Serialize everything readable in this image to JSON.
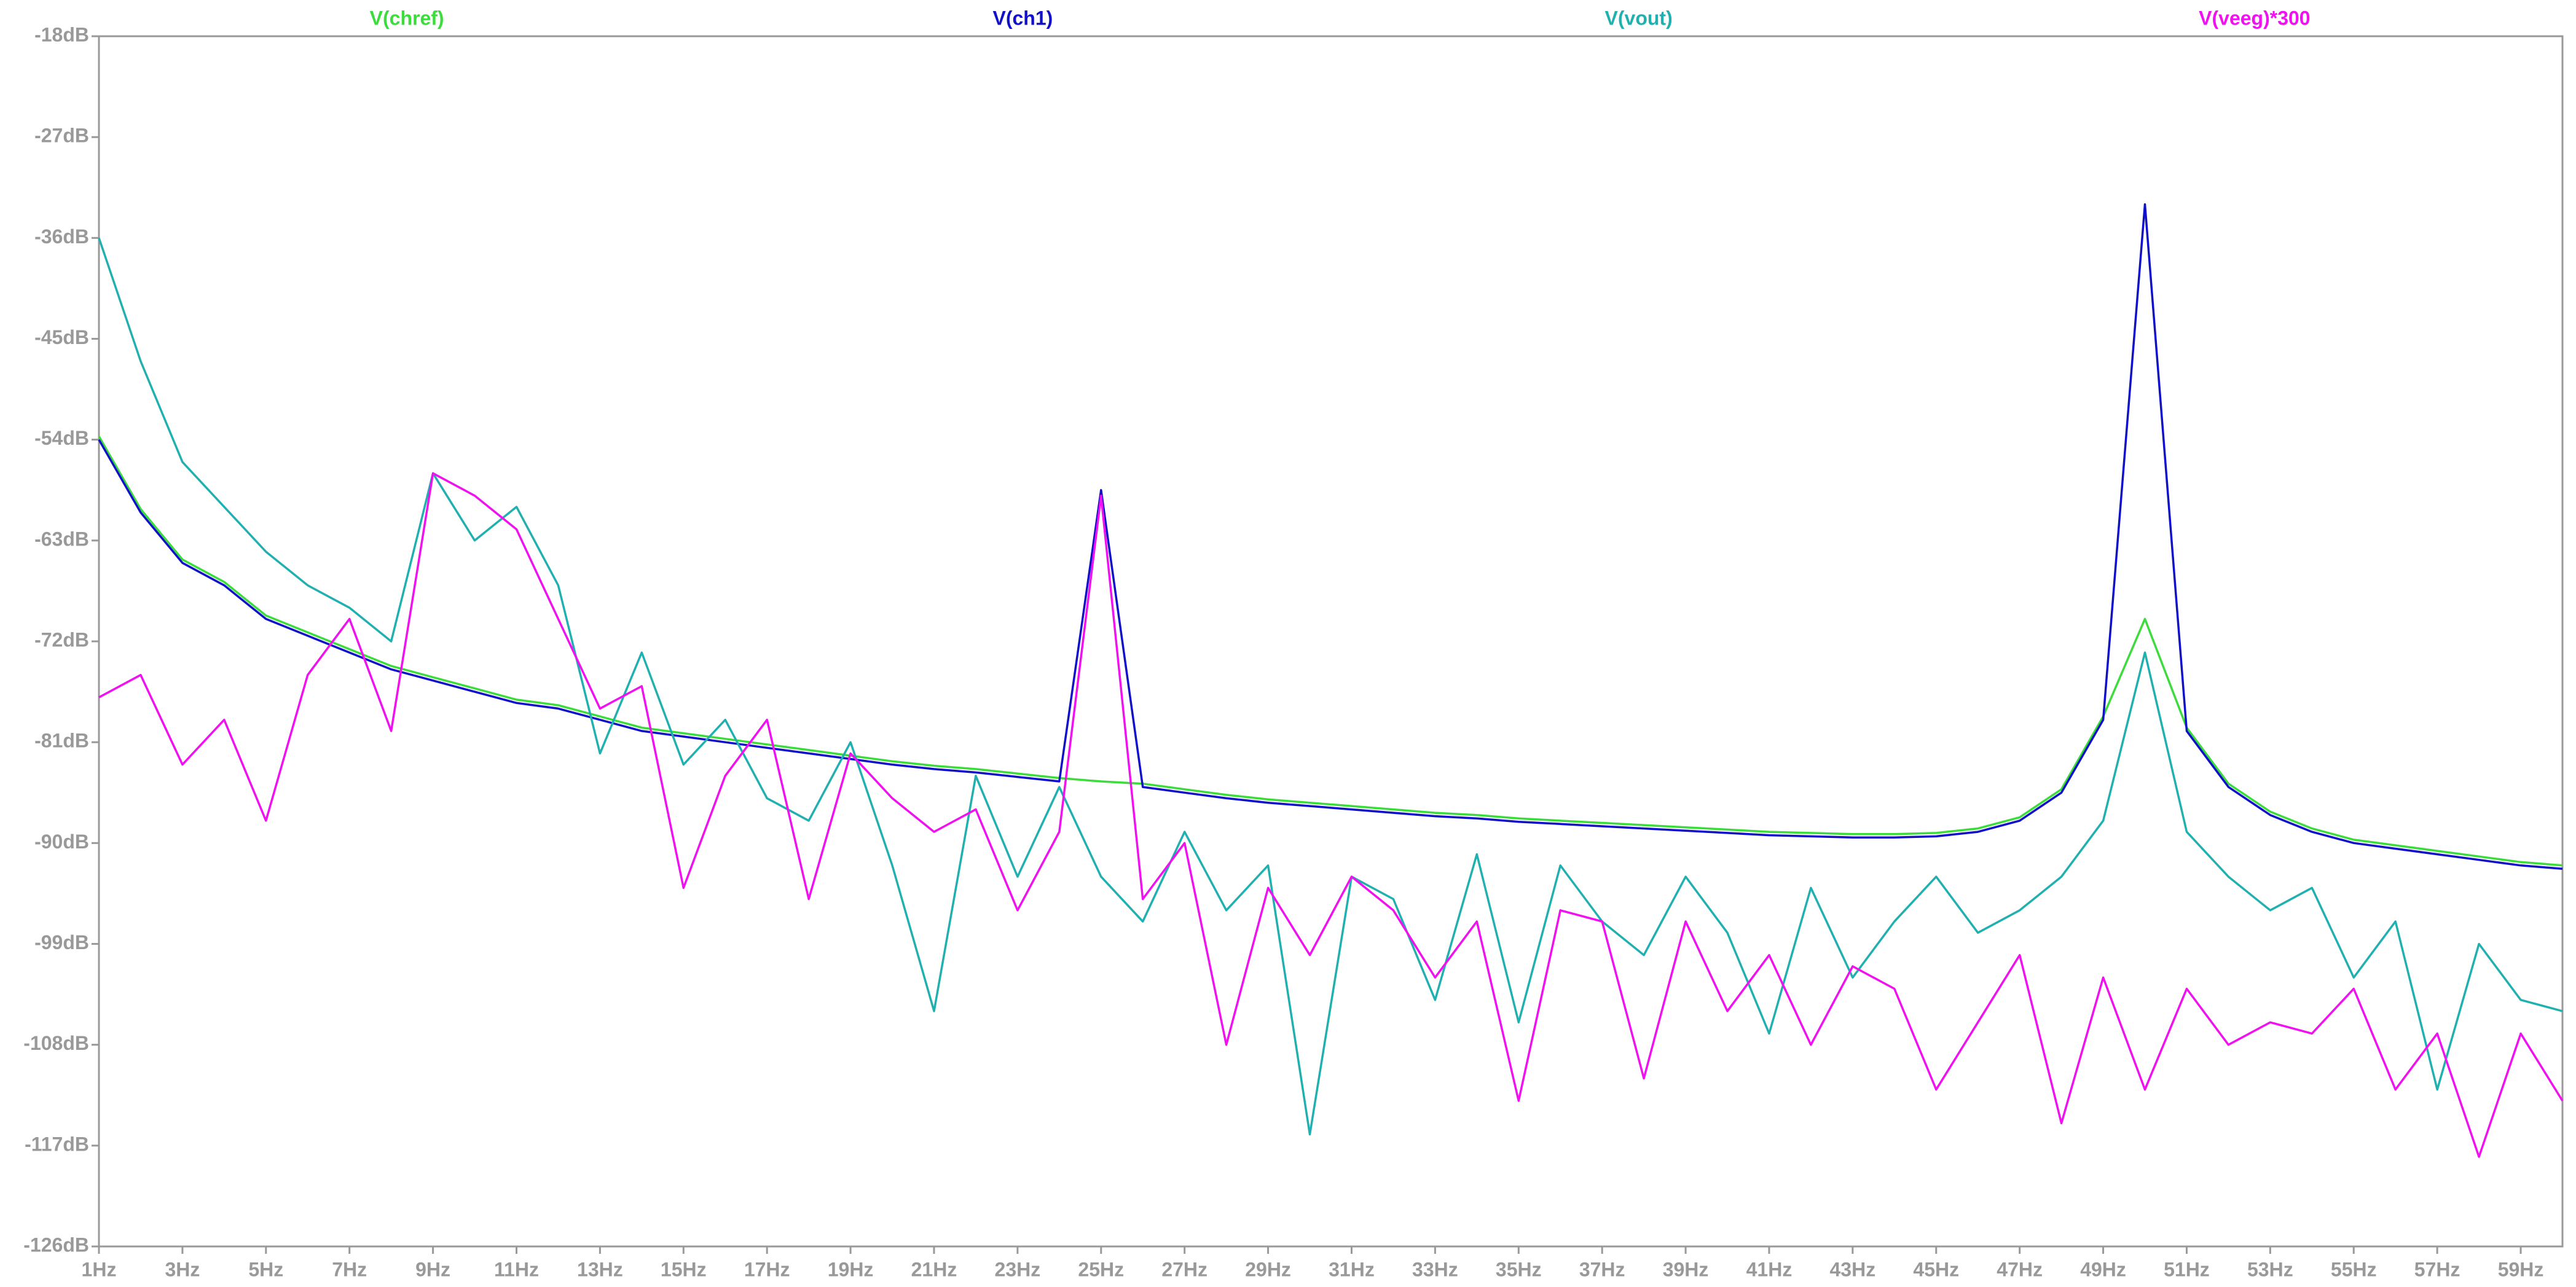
{
  "chart_data": {
    "type": "line",
    "x": [
      1,
      2,
      3,
      4,
      5,
      6,
      7,
      8,
      9,
      10,
      11,
      12,
      13,
      14,
      15,
      16,
      17,
      18,
      19,
      20,
      21,
      22,
      23,
      24,
      25,
      26,
      27,
      28,
      29,
      30,
      31,
      32,
      33,
      34,
      35,
      36,
      37,
      38,
      39,
      40,
      41,
      42,
      43,
      44,
      45,
      46,
      47,
      48,
      49,
      50,
      51,
      52,
      53,
      54,
      55,
      56,
      57,
      58,
      59,
      60
    ],
    "series": [
      {
        "name": "V(chref)",
        "color": "#3cdc3c",
        "values": [
          -53.7,
          -60.2,
          -64.7,
          -66.7,
          -69.7,
          -71.2,
          -72.7,
          -74.2,
          -75.2,
          -76.2,
          -77.2,
          -77.7,
          -78.7,
          -79.7,
          -80.2,
          -80.7,
          -81.2,
          -81.7,
          -82.2,
          -82.7,
          -83.1,
          -83.4,
          -83.8,
          -84.2,
          -84.5,
          -84.7,
          -85.2,
          -85.7,
          -86.1,
          -86.4,
          -86.7,
          -87,
          -87.3,
          -87.5,
          -87.8,
          -88,
          -88.2,
          -88.4,
          -88.6,
          -88.8,
          -89,
          -89.1,
          -89.2,
          -89.2,
          -89.1,
          -88.7,
          -87.7,
          -85.2,
          -78.7,
          -70,
          -79.7,
          -84.7,
          -87.2,
          -88.7,
          -89.7,
          -90.2,
          -90.7,
          -91.2,
          -91.7,
          -92
        ]
      },
      {
        "name": "V(ch1)",
        "color": "#1010c8",
        "values": [
          -54,
          -60.5,
          -65,
          -67,
          -70,
          -71.5,
          -73,
          -74.5,
          -75.5,
          -76.5,
          -77.5,
          -78,
          -79,
          -80,
          -80.5,
          -81,
          -81.5,
          -82,
          -82.5,
          -83,
          -83.4,
          -83.7,
          -84.1,
          -84.5,
          -58.5,
          -85,
          -85.5,
          -86,
          -86.4,
          -86.7,
          -87,
          -87.3,
          -87.6,
          -87.8,
          -88.1,
          -88.3,
          -88.5,
          -88.7,
          -88.9,
          -89.1,
          -89.3,
          -89.4,
          -89.5,
          -89.5,
          -89.4,
          -89,
          -88,
          -85.5,
          -79,
          -33,
          -80,
          -85,
          -87.5,
          -89,
          -90,
          -90.5,
          -91,
          -91.5,
          -92,
          -92.3
        ]
      },
      {
        "name": "V(vout)",
        "color": "#20b0b0",
        "values": [
          -36,
          -47,
          -56,
          -60,
          -64,
          -67,
          -69,
          -72,
          -57,
          -63,
          -60,
          -67,
          -82,
          -73,
          -83,
          -79,
          -86,
          -88,
          -81,
          -92,
          -105,
          -84,
          -93,
          -85,
          -93,
          -97,
          -89,
          -96,
          -92,
          -116,
          -93,
          -95,
          -104,
          -91,
          -106,
          -92,
          -97,
          -100,
          -93,
          -98,
          -107,
          -94,
          -102,
          -97,
          -93,
          -98,
          -96,
          -93,
          -88,
          -73,
          -89,
          -93,
          -96,
          -94,
          -102,
          -97,
          -112,
          -99,
          -104,
          -105
        ]
      },
      {
        "name": "V(veeg)*300",
        "color": "#f010f0",
        "values": [
          -77,
          -75,
          -83,
          -79,
          -88,
          -75,
          -70,
          -80,
          -57,
          -59,
          -62,
          -70,
          -78,
          -76,
          -94,
          -84,
          -79,
          -95,
          -82,
          -86,
          -89,
          -87,
          -96,
          -89,
          -59,
          -95,
          -90,
          -108,
          -94,
          -100,
          -93,
          -96,
          -102,
          -97,
          -113,
          -96,
          -97,
          -111,
          -97,
          -105,
          -100,
          -108,
          -101,
          -103,
          -112,
          -106,
          -100,
          -115,
          -102,
          -112,
          -103,
          -108,
          -106,
          -107,
          -103,
          -112,
          -107,
          -118,
          -107,
          -113
        ]
      }
    ],
    "xlim": [
      1,
      60
    ],
    "xticks": [
      {
        "value": 1,
        "label": "1Hz"
      },
      {
        "value": 3,
        "label": "3Hz"
      },
      {
        "value": 5,
        "label": "5Hz"
      },
      {
        "value": 7,
        "label": "7Hz"
      },
      {
        "value": 9,
        "label": "9Hz"
      },
      {
        "value": 11,
        "label": "11Hz"
      },
      {
        "value": 13,
        "label": "13Hz"
      },
      {
        "value": 15,
        "label": "15Hz"
      },
      {
        "value": 17,
        "label": "17Hz"
      },
      {
        "value": 19,
        "label": "19Hz"
      },
      {
        "value": 21,
        "label": "21Hz"
      },
      {
        "value": 23,
        "label": "23Hz"
      },
      {
        "value": 25,
        "label": "25Hz"
      },
      {
        "value": 27,
        "label": "27Hz"
      },
      {
        "value": 29,
        "label": "29Hz"
      },
      {
        "value": 31,
        "label": "31Hz"
      },
      {
        "value": 33,
        "label": "33Hz"
      },
      {
        "value": 35,
        "label": "35Hz"
      },
      {
        "value": 37,
        "label": "37Hz"
      },
      {
        "value": 39,
        "label": "39Hz"
      },
      {
        "value": 41,
        "label": "41Hz"
      },
      {
        "value": 43,
        "label": "43Hz"
      },
      {
        "value": 45,
        "label": "45Hz"
      },
      {
        "value": 47,
        "label": "47Hz"
      },
      {
        "value": 49,
        "label": "49Hz"
      },
      {
        "value": 51,
        "label": "51Hz"
      },
      {
        "value": 53,
        "label": "53Hz"
      },
      {
        "value": 55,
        "label": "55Hz"
      },
      {
        "value": 57,
        "label": "57Hz"
      },
      {
        "value": 59,
        "label": "59Hz"
      }
    ],
    "ylim": [
      -126,
      -18
    ],
    "yticks": [
      {
        "value": -18,
        "label": "-18dB"
      },
      {
        "value": -27,
        "label": "-27dB"
      },
      {
        "value": -36,
        "label": "-36dB"
      },
      {
        "value": -45,
        "label": "-45dB"
      },
      {
        "value": -54,
        "label": "-54dB"
      },
      {
        "value": -63,
        "label": "-63dB"
      },
      {
        "value": -72,
        "label": "-72dB"
      },
      {
        "value": -81,
        "label": "-81dB"
      },
      {
        "value": -90,
        "label": "-90dB"
      },
      {
        "value": -99,
        "label": "-99dB"
      },
      {
        "value": -108,
        "label": "-108dB"
      },
      {
        "value": -117,
        "label": "-117dB"
      },
      {
        "value": -126,
        "label": "-126dB"
      }
    ],
    "grid": false
  }
}
